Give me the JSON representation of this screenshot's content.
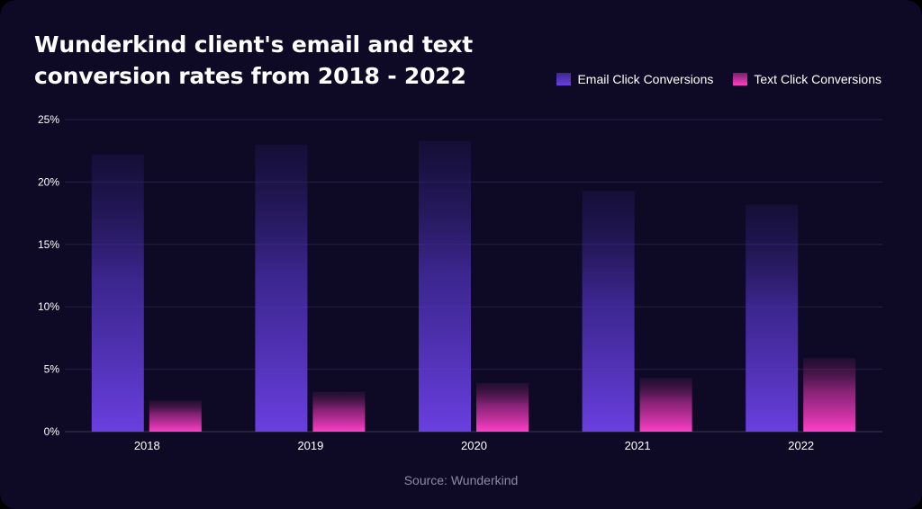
{
  "chart_data": {
    "type": "bar",
    "title": "Wunderkind client's email and text conversion rates from 2018 - 2022",
    "categories": [
      "2018",
      "2019",
      "2020",
      "2021",
      "2022"
    ],
    "series": [
      {
        "name": "Email Click Conversions",
        "values": [
          22.2,
          23.0,
          23.3,
          19.3,
          18.2
        ]
      },
      {
        "name": "Text Click Conversions",
        "values": [
          2.5,
          3.2,
          3.9,
          4.3,
          5.9
        ]
      }
    ],
    "yticks": [
      "0%",
      "5%",
      "10%",
      "15%",
      "20%",
      "25%"
    ],
    "ylim": [
      0,
      25
    ],
    "grid": true,
    "legend_position": "top-right",
    "source": "Source: Wunderkind"
  },
  "colors": {
    "background": "#0e0a26",
    "email": "#6a3fe0",
    "text": "#ff3fc8",
    "grid": "#262040"
  }
}
